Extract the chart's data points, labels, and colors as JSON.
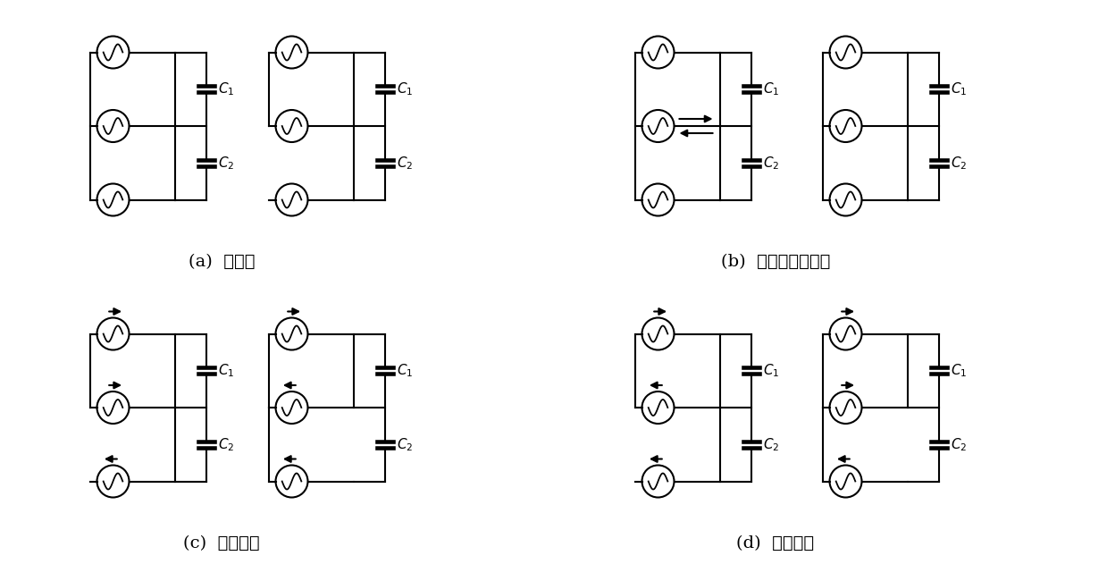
{
  "background": "#ffffff",
  "labels": {
    "a": "(a)  大矢量",
    "b": "(b)  中矢量和零矢量",
    "c": "(c)  负小矢量",
    "d": "(d)  正小矢量"
  },
  "label_fontsize": 14,
  "C1": "$C_1$",
  "C2": "$C_2$",
  "panel_a": {
    "sub1": {
      "left_bar": [
        true,
        true,
        true
      ],
      "right_bar": [
        true,
        true,
        true
      ],
      "arrows": [
        null,
        null,
        null
      ]
    },
    "sub2": {
      "left_bar": [
        true,
        true,
        false
      ],
      "right_bar": [
        true,
        true,
        true
      ],
      "arrows": [
        null,
        null,
        null
      ]
    }
  },
  "panel_b": {
    "sub1": {
      "left_bar": [
        true,
        true,
        true
      ],
      "right_bar": [
        true,
        true,
        true
      ],
      "arrows": [
        null,
        "right_left_pair",
        null
      ]
    },
    "sub2": {
      "left_bar": [
        true,
        true,
        true
      ],
      "right_bar": [
        true,
        true,
        true
      ],
      "arrows": [
        null,
        null,
        null
      ]
    }
  },
  "panel_c": {
    "sub1": {
      "left_bar": [
        true,
        true,
        false
      ],
      "right_bar": [
        true,
        true,
        true
      ],
      "arrows": [
        "right",
        "right",
        "left"
      ]
    },
    "sub2": {
      "left_bar": [
        true,
        true,
        true
      ],
      "right_bar": [
        true,
        true,
        false
      ],
      "arrows": [
        "right",
        "left",
        "left"
      ]
    }
  },
  "panel_d": {
    "sub1": {
      "left_bar": [
        true,
        true,
        false
      ],
      "right_bar": [
        true,
        true,
        true
      ],
      "arrows": [
        "right",
        "left",
        "left"
      ]
    },
    "sub2": {
      "left_bar": [
        true,
        true,
        true
      ],
      "right_bar": [
        true,
        true,
        false
      ],
      "arrows": [
        "right",
        "right",
        "left"
      ]
    }
  }
}
